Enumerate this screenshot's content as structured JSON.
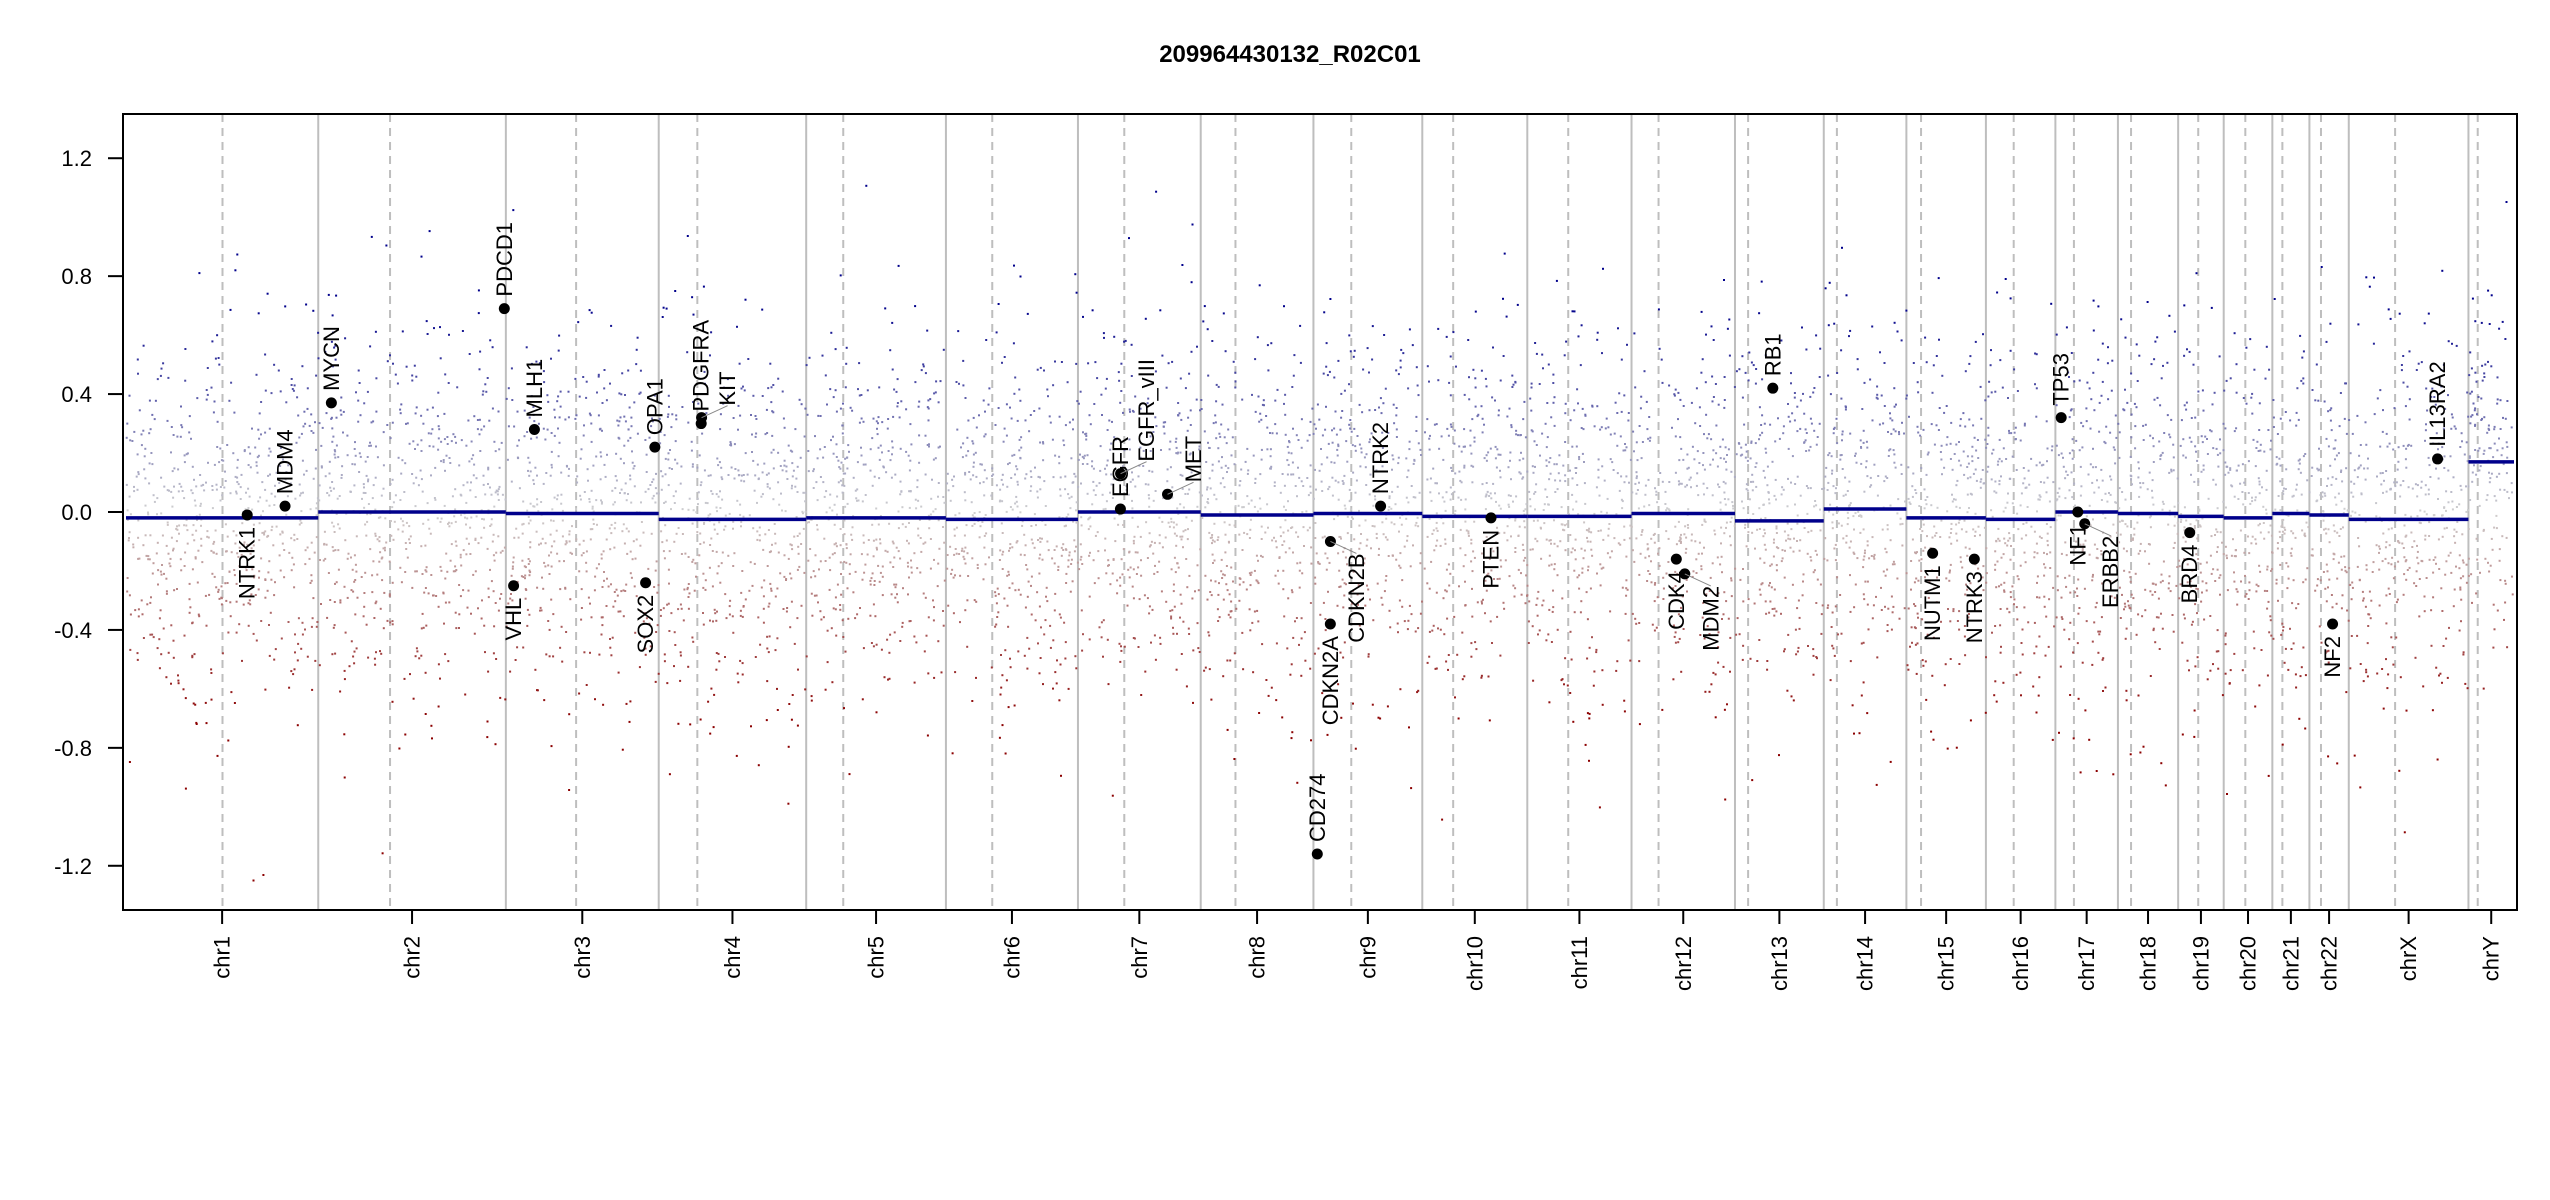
{
  "chart_data": {
    "type": "scatter",
    "title": "209964430132_R02C01",
    "xlabel": "",
    "ylabel": "",
    "ylim": [
      -1.35,
      1.35
    ],
    "yticks": [
      {
        "value": 1.2,
        "label": "1.2"
      },
      {
        "value": 0.8,
        "label": "0.8"
      },
      {
        "value": 0.4,
        "label": "0.4"
      },
      {
        "value": 0.0,
        "label": "0.0"
      },
      {
        "value": -0.4,
        "label": "-0.4"
      },
      {
        "value": -0.8,
        "label": "-0.8"
      },
      {
        "value": -1.2,
        "label": "-1.2"
      }
    ],
    "colors": {
      "gain": "#00008b",
      "loss": "#8b0000",
      "neutral": "#d0d0d0",
      "segment": "#00008b",
      "boundary": "#bebebe"
    },
    "chromosomes": [
      {
        "name": "chr1",
        "length_mb": 249,
        "centromere_mb": 125,
        "segment_mean": -0.02
      },
      {
        "name": "chr2",
        "length_mb": 243,
        "centromere_mb": 93,
        "segment_mean": 0.0
      },
      {
        "name": "chr3",
        "length_mb": 198,
        "centromere_mb": 91,
        "segment_mean": -0.005
      },
      {
        "name": "chr4",
        "length_mb": 191,
        "centromere_mb": 50,
        "segment_mean": -0.025
      },
      {
        "name": "chr5",
        "length_mb": 181,
        "centromere_mb": 48,
        "segment_mean": -0.02
      },
      {
        "name": "chr6",
        "length_mb": 171,
        "centromere_mb": 60,
        "segment_mean": -0.025
      },
      {
        "name": "chr7",
        "length_mb": 159,
        "centromere_mb": 60,
        "segment_mean": 0.0
      },
      {
        "name": "chr8",
        "length_mb": 146,
        "centromere_mb": 45,
        "segment_mean": -0.01
      },
      {
        "name": "chr9",
        "length_mb": 141,
        "centromere_mb": 49,
        "segment_mean": -0.005
      },
      {
        "name": "chr10",
        "length_mb": 136,
        "centromere_mb": 40,
        "segment_mean": -0.015
      },
      {
        "name": "chr11",
        "length_mb": 135,
        "centromere_mb": 53,
        "segment_mean": -0.015
      },
      {
        "name": "chr12",
        "length_mb": 134,
        "centromere_mb": 35,
        "segment_mean": -0.005
      },
      {
        "name": "chr13",
        "length_mb": 115,
        "centromere_mb": 17,
        "segment_mean": -0.03
      },
      {
        "name": "chr14",
        "length_mb": 107,
        "centromere_mb": 17,
        "segment_mean": 0.01
      },
      {
        "name": "chr15",
        "length_mb": 103,
        "centromere_mb": 19,
        "segment_mean": -0.02
      },
      {
        "name": "chr16",
        "length_mb": 90,
        "centromere_mb": 36,
        "segment_mean": -0.025
      },
      {
        "name": "chr17",
        "length_mb": 81,
        "centromere_mb": 24,
        "segment_mean": 0.0
      },
      {
        "name": "chr18",
        "length_mb": 78,
        "centromere_mb": 17,
        "segment_mean": -0.005
      },
      {
        "name": "chr19",
        "length_mb": 59,
        "centromere_mb": 26,
        "segment_mean": -0.015
      },
      {
        "name": "chr20",
        "length_mb": 63,
        "centromere_mb": 28,
        "segment_mean": -0.02
      },
      {
        "name": "chr21",
        "length_mb": 48,
        "centromere_mb": 13,
        "segment_mean": -0.005
      },
      {
        "name": "chr22",
        "length_mb": 51,
        "centromere_mb": 15,
        "segment_mean": -0.01
      },
      {
        "name": "chrX",
        "length_mb": 155,
        "centromere_mb": 60,
        "segment_mean": -0.025
      },
      {
        "name": "chrY",
        "length_mb": 59,
        "centromere_mb": 12,
        "segment_mean": 0.17
      }
    ],
    "genes": [
      {
        "name": "NTRK1",
        "chr": "chr1",
        "pos_mb": 157,
        "value": -0.01,
        "label_side": "below"
      },
      {
        "name": "MDM4",
        "chr": "chr1",
        "pos_mb": 206,
        "value": 0.02,
        "label_side": "above"
      },
      {
        "name": "MYCN",
        "chr": "chr2",
        "pos_mb": 17,
        "value": 0.37,
        "label_side": "above"
      },
      {
        "name": "PDCD1",
        "chr": "chr2",
        "pos_mb": 241,
        "value": 0.69,
        "label_side": "above"
      },
      {
        "name": "VHL",
        "chr": "chr3",
        "pos_mb": 10,
        "value": -0.25,
        "label_side": "below"
      },
      {
        "name": "MLH1",
        "chr": "chr3",
        "pos_mb": 37,
        "value": 0.28,
        "label_side": "above"
      },
      {
        "name": "SOX2",
        "chr": "chr3",
        "pos_mb": 181,
        "value": -0.24,
        "label_side": "below"
      },
      {
        "name": "OPA1",
        "chr": "chr3",
        "pos_mb": 193,
        "value": 0.22,
        "label_side": "above"
      },
      {
        "name": "PDGFRA",
        "chr": "chr4",
        "pos_mb": 55,
        "value": 0.3,
        "label_side": "above"
      },
      {
        "name": "KIT",
        "chr": "chr4",
        "pos_mb": 55.5,
        "value": 0.32,
        "label_side": "above"
      },
      {
        "name": "EGFR",
        "chr": "chr7",
        "pos_mb": 55,
        "value": 0.01,
        "label_side": "above"
      },
      {
        "name": "EGFR_vIII",
        "chr": "chr7",
        "pos_mb": 55.2,
        "value": 0.13,
        "label_side": "above"
      },
      {
        "name": "MET",
        "chr": "chr7",
        "pos_mb": 116,
        "value": 0.06,
        "label_side": "above"
      },
      {
        "name": "CD274",
        "chr": "chr9",
        "pos_mb": 5,
        "value": -1.16,
        "label_side": "above"
      },
      {
        "name": "CDKN2A",
        "chr": "chr9",
        "pos_mb": 21.9,
        "value": -0.38,
        "label_side": "below"
      },
      {
        "name": "CDKN2B",
        "chr": "chr9",
        "pos_mb": 22.0,
        "value": -0.1,
        "label_side": "below"
      },
      {
        "name": "NTRK2",
        "chr": "chr9",
        "pos_mb": 87,
        "value": 0.02,
        "label_side": "above"
      },
      {
        "name": "PTEN",
        "chr": "chr10",
        "pos_mb": 89,
        "value": -0.02,
        "label_side": "below"
      },
      {
        "name": "CDK4",
        "chr": "chr12",
        "pos_mb": 58,
        "value": -0.16,
        "label_side": "below"
      },
      {
        "name": "MDM2",
        "chr": "chr12",
        "pos_mb": 69,
        "value": -0.21,
        "label_side": "below"
      },
      {
        "name": "RB1",
        "chr": "chr13",
        "pos_mb": 49,
        "value": 0.42,
        "label_side": "above"
      },
      {
        "name": "NUTM1",
        "chr": "chr15",
        "pos_mb": 34,
        "value": -0.14,
        "label_side": "below"
      },
      {
        "name": "NTRK3",
        "chr": "chr15",
        "pos_mb": 88,
        "value": -0.16,
        "label_side": "below"
      },
      {
        "name": "TP53",
        "chr": "chr17",
        "pos_mb": 7.5,
        "value": 0.32,
        "label_side": "above"
      },
      {
        "name": "NF1",
        "chr": "chr17",
        "pos_mb": 29,
        "value": 0.0,
        "label_side": "below"
      },
      {
        "name": "ERBB2",
        "chr": "chr17",
        "pos_mb": 38,
        "value": -0.04,
        "label_side": "below"
      },
      {
        "name": "BRD4",
        "chr": "chr19",
        "pos_mb": 15,
        "value": -0.07,
        "label_side": "below"
      },
      {
        "name": "NF2",
        "chr": "chr22",
        "pos_mb": 30,
        "value": -0.38,
        "label_side": "below"
      },
      {
        "name": "IL13RA2",
        "chr": "chrX",
        "pos_mb": 115,
        "value": 0.18,
        "label_side": "above"
      }
    ]
  }
}
